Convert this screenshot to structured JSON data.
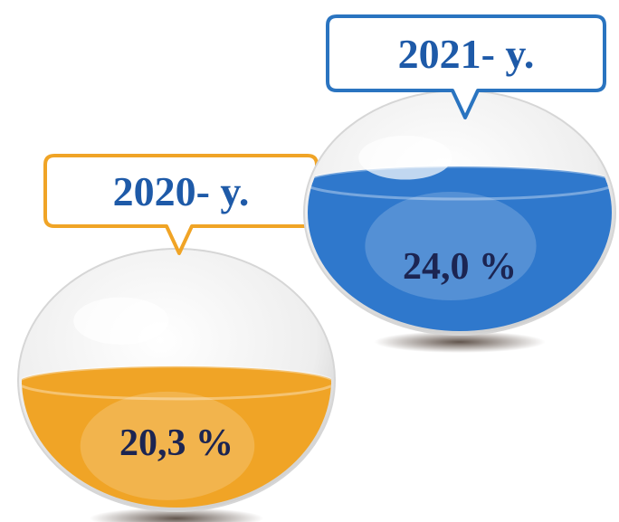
{
  "chart_data": {
    "type": "bowl",
    "categories": [
      "2020- y.",
      "2021- y."
    ],
    "values": [
      20.3,
      24.0
    ],
    "value_labels": [
      "20,3 %",
      "24,0 %"
    ],
    "colors": [
      "#f0a426",
      "#2f78cc"
    ]
  }
}
